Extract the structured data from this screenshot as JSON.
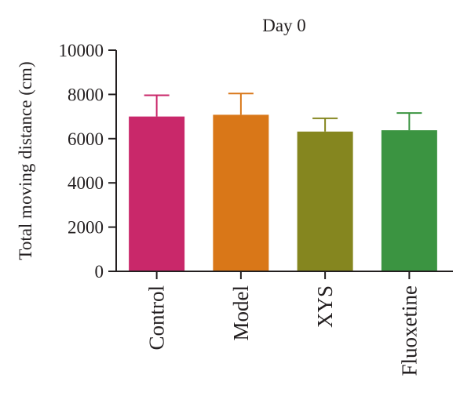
{
  "chart_data": {
    "type": "bar",
    "title": "Day 0",
    "xlabel": "",
    "ylabel": "Total moving distance (cm)",
    "ylim": [
      0,
      10000
    ],
    "yticks": [
      0,
      2000,
      4000,
      6000,
      8000,
      10000
    ],
    "grid": false,
    "legend": "none",
    "categories": [
      "Control",
      "Model",
      "XYS",
      "Fluoxetine"
    ],
    "values": [
      7000,
      7080,
      6320,
      6380
    ],
    "error_upper": [
      960,
      960,
      600,
      780
    ],
    "colors": [
      "#c9286a",
      "#d97718",
      "#85861f",
      "#3b9441"
    ],
    "axis_color": "#231f20"
  }
}
